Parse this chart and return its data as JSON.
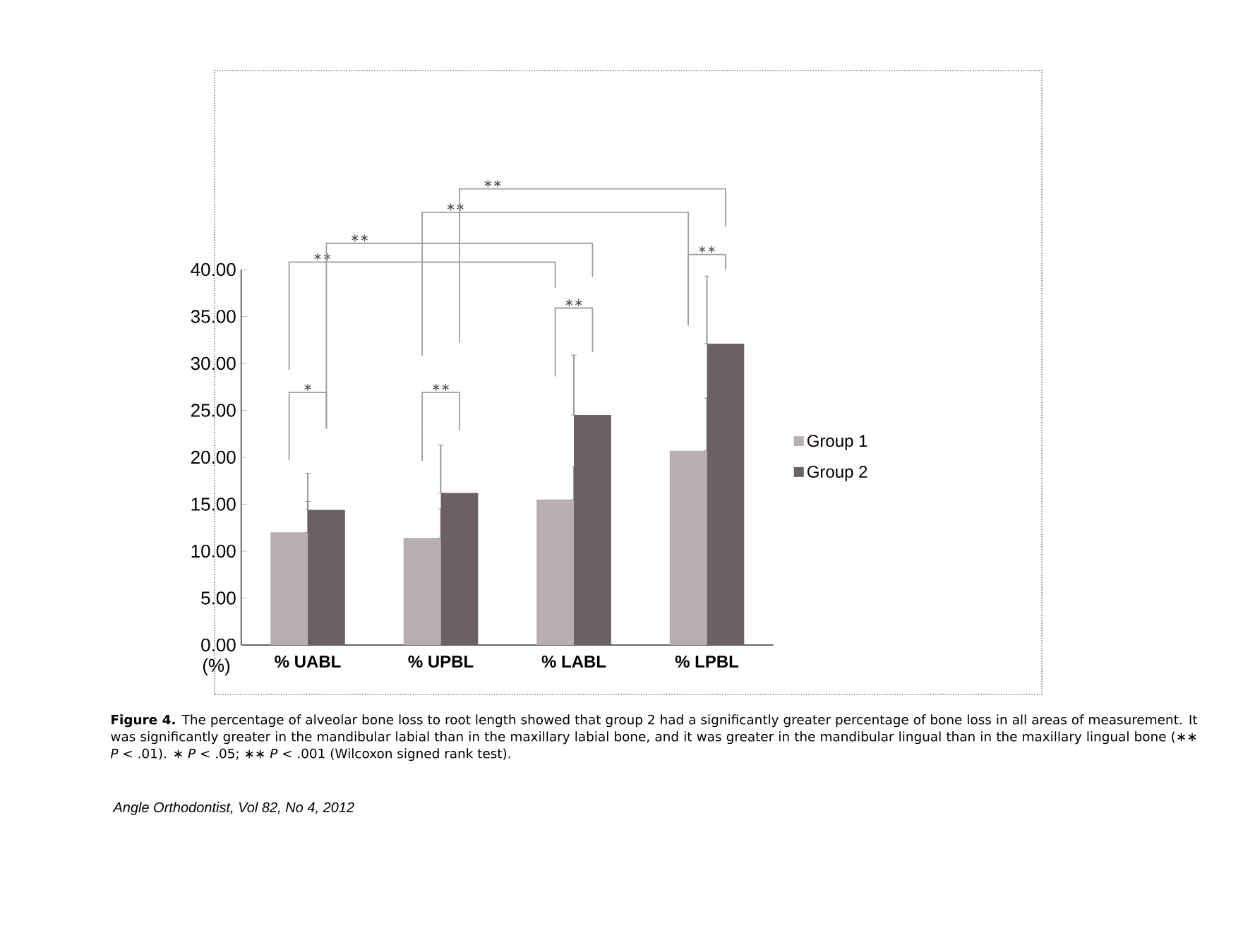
{
  "chart_data": {
    "type": "bar",
    "categories": [
      "% UABL",
      "% UPBL",
      "% LABL",
      "% LPBL"
    ],
    "ylabel": "(%)",
    "series": [
      {
        "name": "Group 1",
        "color": "#b9afb1",
        "values": [
          12.0,
          11.4,
          15.5,
          20.7
        ],
        "errors": [
          [
            12.0,
            15.3
          ],
          [
            11.4,
            14.5
          ],
          [
            15.5,
            19.0
          ],
          [
            20.7,
            26.3
          ]
        ]
      },
      {
        "name": "Group 2",
        "color": "#6b6164",
        "values": [
          14.4,
          16.2,
          24.5,
          32.1
        ],
        "errors": [
          [
            14.4,
            18.3
          ],
          [
            16.2,
            21.3
          ],
          [
            24.5,
            30.9
          ],
          [
            32.1,
            39.3
          ]
        ]
      }
    ],
    "ylim": [
      0,
      40
    ],
    "yticks": [
      {
        "value": 0,
        "label": "0.00"
      },
      {
        "value": 5,
        "label": "5.00"
      },
      {
        "value": 10,
        "label": "10.00"
      },
      {
        "value": 15,
        "label": "15.00"
      },
      {
        "value": 20,
        "label": "20.00"
      },
      {
        "value": 25,
        "label": "25.00"
      },
      {
        "value": 30,
        "label": "30.00"
      },
      {
        "value": 35,
        "label": "35.00"
      },
      {
        "value": 40,
        "label": "40.00"
      }
    ],
    "legend": "right",
    "annotations": [
      "∗",
      "∗∗",
      "∗∗",
      "∗∗",
      "∗∗",
      "∗∗",
      "∗∗",
      "∗∗",
      "**Figure 4.** The percentage of alveolar bone loss to root length showed that group 2 had a significantly greater percentage of bone loss in all areas of measurement. It was significantly greater in the mandibular labial than in the maxillary labial bone, and it was greater in the mandibular lingual than in the maxillary lingual bone (∗∗ *P* < .01). ∗ *P* < .05; ∗∗ *P* < .001 (Wilcoxon signed rank test).",
      "Angle Orthodontist, Vol 82, No 4, 2012"
    ]
  }
}
